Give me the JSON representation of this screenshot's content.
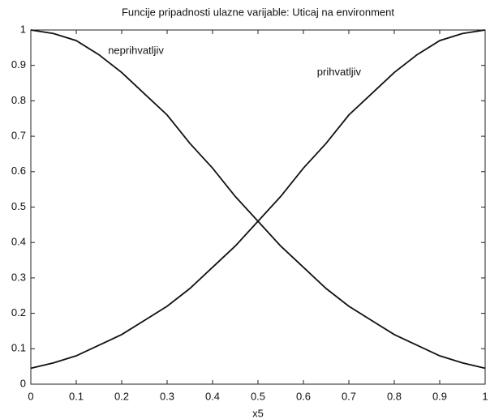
{
  "chart_data": {
    "type": "line",
    "title": "Funcije pripadnosti ulazne varijable: Uticaj na environment",
    "x_label": "x5",
    "x": [
      0,
      0.05,
      0.1,
      0.15,
      0.2,
      0.25,
      0.3,
      0.35,
      0.4,
      0.45,
      0.5,
      0.55,
      0.6,
      0.65,
      0.7,
      0.75,
      0.8,
      0.85,
      0.9,
      0.95,
      1
    ],
    "series": [
      {
        "name": "neprihvatljiv",
        "color": "#111111",
        "values": [
          1,
          0.99,
          0.97,
          0.93,
          0.88,
          0.82,
          0.76,
          0.68,
          0.61,
          0.53,
          0.46,
          0.39,
          0.33,
          0.27,
          0.22,
          0.18,
          0.14,
          0.11,
          0.08,
          0.06,
          0.045
        ]
      },
      {
        "name": "prihvatljiv",
        "color": "#111111",
        "values": [
          0.045,
          0.06,
          0.08,
          0.11,
          0.14,
          0.18,
          0.22,
          0.27,
          0.33,
          0.39,
          0.46,
          0.53,
          0.61,
          0.68,
          0.76,
          0.82,
          0.88,
          0.93,
          0.97,
          0.99,
          1
        ]
      }
    ],
    "annotations": [
      {
        "text": "neprihvatljiv",
        "x": 0.17,
        "y": 0.94
      },
      {
        "text": "prihvatljiv",
        "x": 0.63,
        "y": 0.88
      }
    ],
    "xlim": [
      0,
      1
    ],
    "ylim": [
      0,
      1
    ],
    "xticks": [
      0,
      0.1,
      0.2,
      0.3,
      0.4,
      0.5,
      0.6,
      0.7,
      0.8,
      0.9,
      1
    ],
    "yticks": [
      0,
      0.1,
      0.2,
      0.3,
      0.4,
      0.5,
      0.6,
      0.7,
      0.8,
      0.9,
      1
    ]
  }
}
